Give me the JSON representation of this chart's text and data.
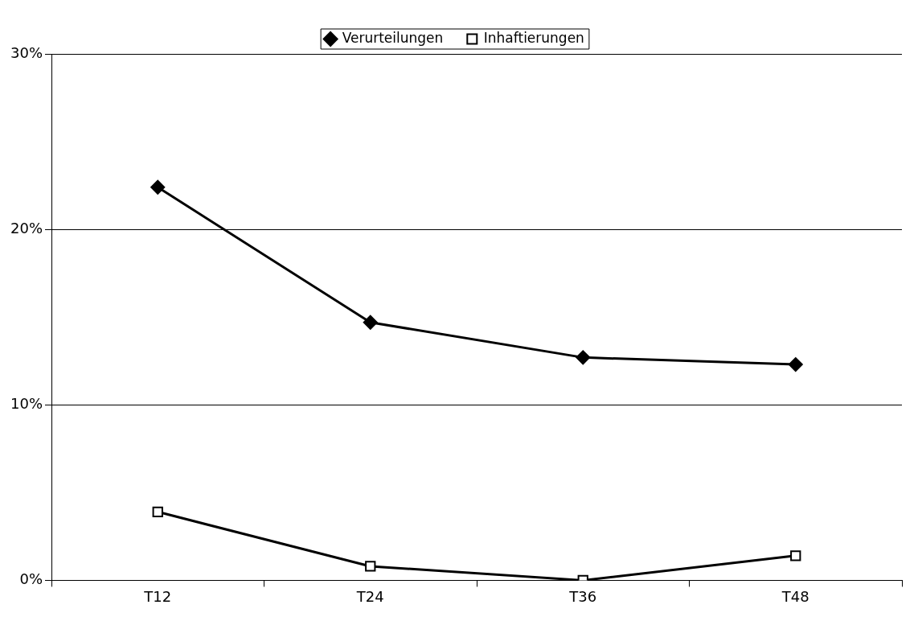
{
  "chart_data": {
    "type": "line",
    "categories": [
      "T12",
      "T24",
      "T36",
      "T48"
    ],
    "series": [
      {
        "name": "Verurteilungen",
        "color": "#000000",
        "marker": "diamond",
        "values": [
          22.4,
          14.7,
          12.7,
          12.3
        ]
      },
      {
        "name": "Inhaftierungen",
        "color": "#000000",
        "marker": "square",
        "values": [
          3.9,
          0.8,
          0.0,
          1.4
        ]
      }
    ],
    "ylim": [
      0,
      30
    ],
    "yticks": [
      {
        "value": 0,
        "label": "0%"
      },
      {
        "value": 10,
        "label": "10%"
      },
      {
        "value": 20,
        "label": "20%"
      },
      {
        "value": 30,
        "label": "30%"
      }
    ],
    "grid": "y",
    "legend": "top",
    "line_style": "solid"
  }
}
